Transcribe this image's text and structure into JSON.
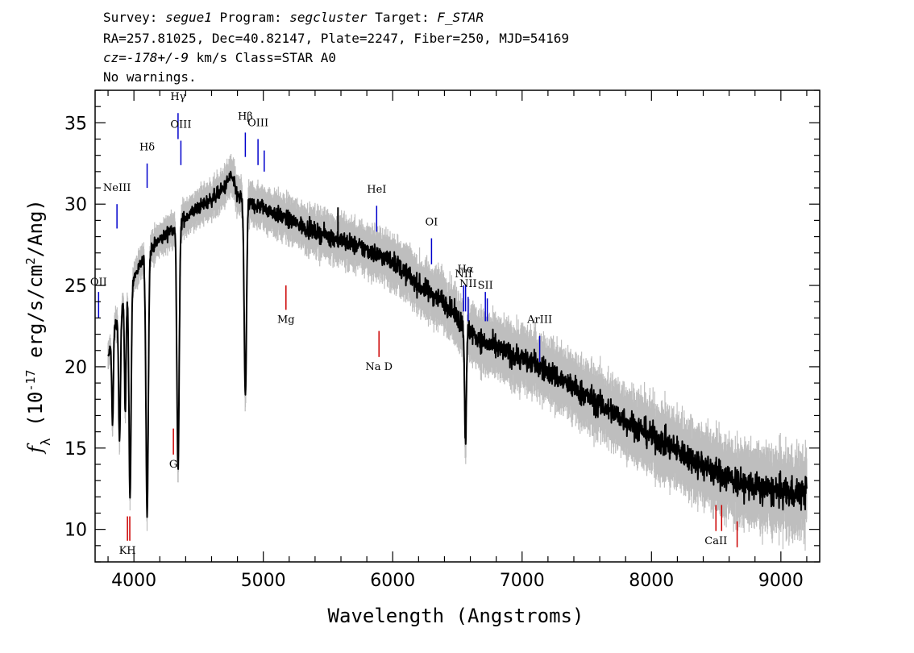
{
  "header": {
    "line1": {
      "survey_label": "Survey:",
      "survey": "segue1",
      "program_label": "Program:",
      "program": "segcluster",
      "target_label": "Target:",
      "target": "F_STAR"
    },
    "line2": "RA=257.81025, Dec=40.82147, Plate=2247, Fiber=250, MJD=54169",
    "line3": {
      "cz_prefix": "cz=",
      "cz_value": "-178+/-9",
      "rest": " km/s Class=STAR A0"
    },
    "line4": "No warnings."
  },
  "chart_data": {
    "type": "line",
    "xlabel": "Wavelength (Angstroms)",
    "ylabel": "f_λ (10^-17 erg/s/cm^2/Ang)",
    "xlim": [
      3700,
      9300
    ],
    "ylim": [
      8,
      37
    ],
    "x_ticks": [
      4000,
      5000,
      6000,
      7000,
      8000,
      9000
    ],
    "y_ticks": [
      10,
      15,
      20,
      25,
      30,
      35
    ],
    "grid": false,
    "colors": {
      "spectrum": "#000000",
      "error_band": "#bebebe",
      "emission": "#0000cc",
      "absorption": "#cc0000"
    },
    "continuum": [
      [
        3800,
        20.5
      ],
      [
        3850,
        22.5
      ],
      [
        3900,
        23.5
      ],
      [
        4000,
        25.5
      ],
      [
        4100,
        27.0
      ],
      [
        4200,
        27.8
      ],
      [
        4300,
        28.5
      ],
      [
        4400,
        29.2
      ],
      [
        4500,
        29.8
      ],
      [
        4600,
        30.3
      ],
      [
        4700,
        31.0
      ],
      [
        4750,
        31.8
      ],
      [
        4800,
        30.5
      ],
      [
        4900,
        30.0
      ],
      [
        5000,
        29.8
      ],
      [
        5200,
        29.0
      ],
      [
        5400,
        28.3
      ],
      [
        5600,
        27.8
      ],
      [
        5800,
        27.2
      ],
      [
        6000,
        26.5
      ],
      [
        6200,
        25.0
      ],
      [
        6400,
        24.0
      ],
      [
        6550,
        22.5
      ],
      [
        6700,
        21.5
      ],
      [
        6900,
        20.8
      ],
      [
        7100,
        20.2
      ],
      [
        7300,
        19.2
      ],
      [
        7500,
        18.2
      ],
      [
        7700,
        17.2
      ],
      [
        7900,
        16.2
      ],
      [
        8100,
        15.3
      ],
      [
        8300,
        14.4
      ],
      [
        8500,
        13.5
      ],
      [
        8700,
        12.8
      ],
      [
        8900,
        12.4
      ],
      [
        9100,
        12.2
      ],
      [
        9200,
        12.3
      ]
    ],
    "absorption_features": [
      {
        "center": 3835,
        "depth": 5.5,
        "width": 6
      },
      {
        "center": 3889,
        "depth": 8.0,
        "width": 7
      },
      {
        "center": 3933,
        "depth": 7.0,
        "width": 6
      },
      {
        "center": 3970,
        "depth": 13.0,
        "width": 8
      },
      {
        "center": 4102,
        "depth": 16.0,
        "width": 9
      },
      {
        "center": 4341,
        "depth": 15.0,
        "width": 9
      },
      {
        "center": 4861,
        "depth": 12.0,
        "width": 9
      },
      {
        "center": 6563,
        "depth": 7.0,
        "width": 7
      }
    ],
    "emission_lines": [
      {
        "label": "Hγ",
        "x": 4341,
        "y_top": 35.6,
        "y_bot": 34.0,
        "label_y": 36.4
      },
      {
        "label": "OIII",
        "x": 4363,
        "y_top": 33.9,
        "y_bot": 32.4,
        "label_y": 34.7
      },
      {
        "label": "Hδ",
        "x": 4102,
        "y_top": 32.5,
        "y_bot": 31.0,
        "label_y": 33.3
      },
      {
        "label": "Hβ",
        "x": 4861,
        "y_top": 34.4,
        "y_bot": 32.9,
        "label_y": 35.2
      },
      {
        "label": "OIII",
        "x": 4959,
        "y_top": 34.0,
        "y_bot": 32.4,
        "label_y": 34.8
      },
      {
        "label": "",
        "x": 5007,
        "y_top": 33.3,
        "y_bot": 32.0,
        "label_y": 0
      },
      {
        "label": "NeIII",
        "x": 3869,
        "y_top": 30.0,
        "y_bot": 28.5,
        "label_y": 30.8
      },
      {
        "label": "HeI",
        "x": 5876,
        "y_top": 29.9,
        "y_bot": 28.3,
        "label_y": 30.7
      },
      {
        "label": "OI",
        "x": 6300,
        "y_top": 27.9,
        "y_bot": 26.3,
        "label_y": 28.7
      },
      {
        "label": "NII",
        "x": 6548,
        "y_top": 25.0,
        "y_bot": 23.4,
        "label_y": 25.5
      },
      {
        "label": "Hα",
        "x": 6563,
        "y_top": 25.0,
        "y_bot": 23.4,
        "label_y": 25.8
      },
      {
        "label": "NII",
        "x": 6583,
        "y_top": 24.3,
        "y_bot": 22.8,
        "label_y": 24.9
      },
      {
        "label": "SII",
        "x": 6716,
        "y_top": 24.6,
        "y_bot": 22.8,
        "label_y": 24.8
      },
      {
        "label": "",
        "x": 6731,
        "y_top": 24.2,
        "y_bot": 22.8,
        "label_y": 0
      },
      {
        "label": "ArIII",
        "x": 7136,
        "y_top": 21.9,
        "y_bot": 20.3,
        "label_y": 22.7
      },
      {
        "label": "OII",
        "x": 3727,
        "y_top": 24.6,
        "y_bot": 23.0,
        "label_y": 25.0
      }
    ],
    "absorption_lines": [
      {
        "label": "G",
        "x": 4305,
        "y_top": 16.2,
        "y_bot": 14.6,
        "label_y": 13.8
      },
      {
        "label": "Mg",
        "x": 5175,
        "y_top": 25.0,
        "y_bot": 23.5,
        "label_y": 22.7
      },
      {
        "label": "Na D",
        "x": 5894,
        "y_top": 22.2,
        "y_bot": 20.6,
        "label_y": 19.8
      },
      {
        "label": "KH",
        "x": 3950,
        "y_top": 10.8,
        "y_bot": 9.3,
        "label_y": 8.5
      },
      {
        "label": "",
        "x": 3968,
        "y_top": 10.8,
        "y_bot": 9.3,
        "label_y": 0
      },
      {
        "label": "CaII",
        "x": 8498,
        "y_top": 11.5,
        "y_bot": 9.9,
        "label_y": 9.1
      },
      {
        "label": "",
        "x": 8542,
        "y_top": 11.5,
        "y_bot": 9.9,
        "label_y": 0
      },
      {
        "label": "",
        "x": 8662,
        "y_top": 10.5,
        "y_bot": 8.9,
        "label_y": 0
      }
    ],
    "spikes": [
      {
        "x": 5577,
        "y_top": 29.8
      },
      {
        "x": 5895,
        "y_top": 27.0
      }
    ]
  }
}
